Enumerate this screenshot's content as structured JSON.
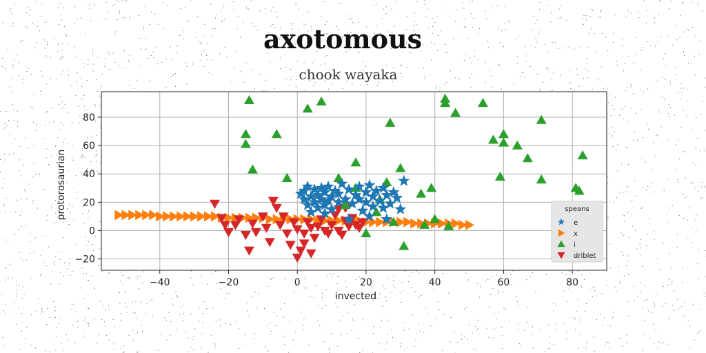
{
  "chart_data": {
    "type": "scatter",
    "title": "axotomous",
    "subtitle": "chook wayaka",
    "xlabel": "invected",
    "ylabel": "protorosaurian",
    "xlim": [
      -57,
      90
    ],
    "ylim": [
      -28,
      98
    ],
    "xticks": [
      -40,
      -20,
      0,
      20,
      40,
      60,
      80
    ],
    "yticks": [
      -20,
      0,
      20,
      40,
      60,
      80
    ],
    "grid": true,
    "legend": {
      "title": "speans",
      "position": "bottom-right"
    },
    "series": [
      {
        "name": "e",
        "marker": "star",
        "color": "#1f77b4",
        "points": [
          [
            1,
            26
          ],
          [
            2,
            22
          ],
          [
            2,
            28
          ],
          [
            3,
            18
          ],
          [
            3,
            31
          ],
          [
            4,
            24
          ],
          [
            5,
            20
          ],
          [
            5,
            29
          ],
          [
            6,
            16
          ],
          [
            6,
            25
          ],
          [
            7,
            22
          ],
          [
            7,
            30
          ],
          [
            8,
            18
          ],
          [
            8,
            27
          ],
          [
            9,
            21
          ],
          [
            9,
            31
          ],
          [
            10,
            15
          ],
          [
            10,
            24
          ],
          [
            11,
            28
          ],
          [
            12,
            20
          ],
          [
            12,
            26
          ],
          [
            13,
            33
          ],
          [
            14,
            22
          ],
          [
            15,
            29
          ],
          [
            16,
            19
          ],
          [
            17,
            25
          ],
          [
            18,
            31
          ],
          [
            18,
            22
          ],
          [
            19,
            14
          ],
          [
            20,
            27
          ],
          [
            20,
            20
          ],
          [
            21,
            32
          ],
          [
            22,
            24
          ],
          [
            22,
            17
          ],
          [
            23,
            28
          ],
          [
            24,
            21
          ],
          [
            25,
            30
          ],
          [
            25,
            16
          ],
          [
            26,
            25
          ],
          [
            27,
            19
          ],
          [
            28,
            27
          ],
          [
            29,
            23
          ],
          [
            31,
            35
          ],
          [
            4,
            13
          ],
          [
            8,
            12
          ],
          [
            21,
            10
          ],
          [
            15,
            8
          ],
          [
            30,
            15
          ],
          [
            26,
            8
          ]
        ]
      },
      {
        "name": "x",
        "marker": "triangle-right",
        "color": "#ff7f0e",
        "points": [
          [
            -52,
            11
          ],
          [
            -50,
            11
          ],
          [
            -48,
            11
          ],
          [
            -46,
            11
          ],
          [
            -44,
            11
          ],
          [
            -42,
            11
          ],
          [
            -40,
            10
          ],
          [
            -38,
            10
          ],
          [
            -36,
            10
          ],
          [
            -34,
            10
          ],
          [
            -32,
            10
          ],
          [
            -30,
            10
          ],
          [
            -28,
            10
          ],
          [
            -26,
            10
          ],
          [
            -24,
            10
          ],
          [
            -22,
            9
          ],
          [
            -20,
            9
          ],
          [
            -18,
            9
          ],
          [
            -16,
            9
          ],
          [
            -14,
            9
          ],
          [
            -12,
            9
          ],
          [
            -10,
            9
          ],
          [
            -8,
            8
          ],
          [
            -6,
            8
          ],
          [
            -4,
            8
          ],
          [
            -2,
            8
          ],
          [
            0,
            8
          ],
          [
            2,
            8
          ],
          [
            4,
            8
          ],
          [
            6,
            7
          ],
          [
            8,
            7
          ],
          [
            10,
            7
          ],
          [
            12,
            7
          ],
          [
            14,
            7
          ],
          [
            16,
            7
          ],
          [
            18,
            7
          ],
          [
            20,
            6
          ],
          [
            22,
            6
          ],
          [
            24,
            6
          ],
          [
            26,
            6
          ],
          [
            28,
            6
          ],
          [
            30,
            6
          ],
          [
            32,
            6
          ],
          [
            34,
            5
          ],
          [
            36,
            5
          ],
          [
            38,
            5
          ],
          [
            40,
            5
          ],
          [
            42,
            5
          ],
          [
            44,
            5
          ],
          [
            46,
            5
          ],
          [
            48,
            4
          ],
          [
            50,
            4
          ]
        ]
      },
      {
        "name": "i",
        "marker": "triangle-up",
        "color": "#2ca02c",
        "points": [
          [
            -14,
            92
          ],
          [
            -15,
            68
          ],
          [
            -15,
            61
          ],
          [
            -13,
            43
          ],
          [
            -6,
            68
          ],
          [
            -3,
            37
          ],
          [
            3,
            86
          ],
          [
            7,
            91
          ],
          [
            12,
            37
          ],
          [
            17,
            48
          ],
          [
            20,
            -2
          ],
          [
            23,
            13
          ],
          [
            26,
            34
          ],
          [
            27,
            76
          ],
          [
            28,
            6
          ],
          [
            30,
            44
          ],
          [
            31,
            -11
          ],
          [
            36,
            26
          ],
          [
            37,
            4
          ],
          [
            39,
            30
          ],
          [
            40,
            8
          ],
          [
            44,
            3
          ],
          [
            43,
            93
          ],
          [
            43,
            90
          ],
          [
            46,
            83
          ],
          [
            54,
            90
          ],
          [
            57,
            64
          ],
          [
            59,
            38
          ],
          [
            60,
            68
          ],
          [
            60,
            62
          ],
          [
            64,
            60
          ],
          [
            67,
            51
          ],
          [
            71,
            78
          ],
          [
            71,
            36
          ],
          [
            81,
            30
          ],
          [
            82,
            28
          ],
          [
            83,
            53
          ],
          [
            17,
            30
          ],
          [
            24,
            22
          ],
          [
            14,
            18
          ]
        ]
      },
      {
        "name": "driblet",
        "marker": "triangle-down",
        "color": "#d62728",
        "points": [
          [
            -24,
            19
          ],
          [
            -22,
            9
          ],
          [
            -21,
            4
          ],
          [
            -20,
            -1
          ],
          [
            -18,
            4
          ],
          [
            -17,
            8
          ],
          [
            -15,
            -3
          ],
          [
            -14,
            -14
          ],
          [
            -13,
            5
          ],
          [
            -12,
            -1
          ],
          [
            -10,
            10
          ],
          [
            -9,
            2
          ],
          [
            -8,
            -8
          ],
          [
            -7,
            21
          ],
          [
            -6,
            16
          ],
          [
            -5,
            4
          ],
          [
            -4,
            10
          ],
          [
            -3,
            -2
          ],
          [
            -2,
            -10
          ],
          [
            -1,
            6
          ],
          [
            0,
            1
          ],
          [
            0,
            -19
          ],
          [
            1,
            -14
          ],
          [
            2,
            -9
          ],
          [
            3,
            6
          ],
          [
            4,
            -16
          ],
          [
            5,
            -5
          ],
          [
            6,
            3
          ],
          [
            7,
            8
          ],
          [
            8,
            0
          ],
          [
            9,
            -2
          ],
          [
            10,
            4
          ],
          [
            11,
            11
          ],
          [
            12,
            15
          ],
          [
            12,
            0
          ],
          [
            13,
            -3
          ],
          [
            14,
            7
          ],
          [
            14,
            16
          ],
          [
            15,
            3
          ],
          [
            16,
            9
          ],
          [
            17,
            4
          ],
          [
            18,
            2
          ],
          [
            19,
            6
          ],
          [
            2,
            -2
          ],
          [
            4,
            2
          ]
        ]
      }
    ]
  }
}
